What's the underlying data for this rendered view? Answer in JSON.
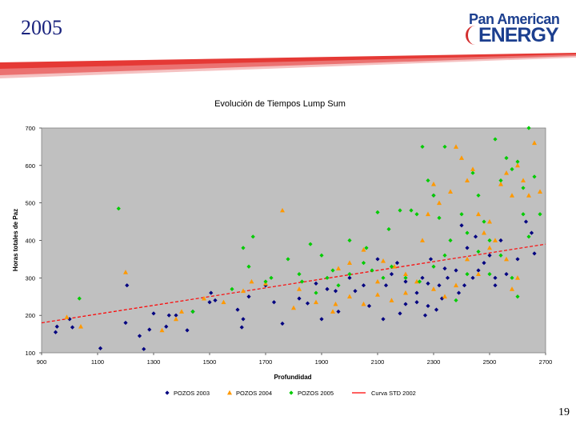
{
  "slide": {
    "title": "2005",
    "page_number": "19",
    "logo_line1": "Pan American",
    "logo_line2": "ENERGY"
  },
  "colors": {
    "banner": "#e53935",
    "plot_bg": "#c0c0c0",
    "pozos2003": "#000080",
    "pozos2004": "#ff9900",
    "pozos2005": "#00cc00",
    "curve": "#ff0000"
  },
  "chart_data": {
    "type": "scatter",
    "title": "Evolución de Tiempos Lump Sum",
    "xlabel": "Profundidad",
    "ylabel": "Horas totales de Paz",
    "xlim": [
      900,
      2700
    ],
    "ylim": [
      100,
      700
    ],
    "x_ticks": [
      "900",
      "1100",
      "1300",
      "1500",
      "1700",
      "1900",
      "2100",
      "2300",
      "2500",
      "2700"
    ],
    "y_ticks": [
      "100",
      "200",
      "300",
      "400",
      "500",
      "600",
      "700"
    ],
    "grid": false,
    "legend_position": "bottom",
    "series": [
      {
        "name": "POZOS 2003",
        "marker": "diamond",
        "points": [
          [
            950,
            155
          ],
          [
            955,
            170
          ],
          [
            1000,
            190
          ],
          [
            1010,
            168
          ],
          [
            1110,
            112
          ],
          [
            1200,
            180
          ],
          [
            1205,
            280
          ],
          [
            1250,
            145
          ],
          [
            1265,
            110
          ],
          [
            1285,
            162
          ],
          [
            1300,
            205
          ],
          [
            1345,
            170
          ],
          [
            1355,
            200
          ],
          [
            1380,
            200
          ],
          [
            1420,
            160
          ],
          [
            1440,
            210
          ],
          [
            1500,
            235
          ],
          [
            1505,
            260
          ],
          [
            1520,
            240
          ],
          [
            1600,
            215
          ],
          [
            1615,
            168
          ],
          [
            1620,
            190
          ],
          [
            1640,
            250
          ],
          [
            1700,
            280
          ],
          [
            1730,
            235
          ],
          [
            1760,
            178
          ],
          [
            1820,
            245
          ],
          [
            1850,
            232
          ],
          [
            1880,
            285
          ],
          [
            1900,
            190
          ],
          [
            1920,
            270
          ],
          [
            1950,
            265
          ],
          [
            2000,
            300
          ],
          [
            2050,
            280
          ],
          [
            2100,
            350
          ],
          [
            2150,
            310
          ],
          [
            2200,
            290
          ],
          [
            2240,
            260
          ],
          [
            2260,
            300
          ],
          [
            2280,
            225
          ],
          [
            2300,
            520
          ],
          [
            2320,
            280
          ],
          [
            2350,
            300
          ],
          [
            2380,
            320
          ],
          [
            2400,
            440
          ],
          [
            2420,
            380
          ],
          [
            2450,
            410
          ],
          [
            2460,
            320
          ],
          [
            2500,
            360
          ],
          [
            2520,
            300
          ],
          [
            2540,
            400
          ],
          [
            2560,
            310
          ],
          [
            2600,
            350
          ],
          [
            2630,
            450
          ],
          [
            2650,
            420
          ],
          [
            2660,
            365
          ],
          [
            2240,
            235
          ],
          [
            2270,
            200
          ],
          [
            2310,
            215
          ],
          [
            2330,
            245
          ],
          [
            2200,
            230
          ],
          [
            2180,
            205
          ],
          [
            2120,
            190
          ],
          [
            2070,
            225
          ],
          [
            2020,
            265
          ],
          [
            1960,
            210
          ],
          [
            2280,
            285
          ],
          [
            2340,
            325
          ],
          [
            2410,
            280
          ],
          [
            2480,
            340
          ],
          [
            2520,
            280
          ],
          [
            2440,
            300
          ],
          [
            2390,
            260
          ],
          [
            2290,
            350
          ],
          [
            2170,
            340
          ],
          [
            2130,
            280
          ]
        ]
      },
      {
        "name": "POZOS 2004",
        "marker": "triangle",
        "points": [
          [
            990,
            195
          ],
          [
            1040,
            170
          ],
          [
            1200,
            315
          ],
          [
            1330,
            160
          ],
          [
            1380,
            190
          ],
          [
            1400,
            210
          ],
          [
            1480,
            245
          ],
          [
            1550,
            235
          ],
          [
            1620,
            265
          ],
          [
            1650,
            290
          ],
          [
            1700,
            285
          ],
          [
            1760,
            480
          ],
          [
            1800,
            220
          ],
          [
            1820,
            270
          ],
          [
            1880,
            235
          ],
          [
            1940,
            210
          ],
          [
            1960,
            325
          ],
          [
            2000,
            340
          ],
          [
            2050,
            375
          ],
          [
            2100,
            290
          ],
          [
            2120,
            345
          ],
          [
            2160,
            330
          ],
          [
            2200,
            310
          ],
          [
            2240,
            290
          ],
          [
            2260,
            400
          ],
          [
            2280,
            470
          ],
          [
            2300,
            550
          ],
          [
            2320,
            500
          ],
          [
            2360,
            530
          ],
          [
            2380,
            650
          ],
          [
            2400,
            620
          ],
          [
            2420,
            560
          ],
          [
            2440,
            590
          ],
          [
            2460,
            470
          ],
          [
            2480,
            420
          ],
          [
            2500,
            380
          ],
          [
            2540,
            550
          ],
          [
            2560,
            580
          ],
          [
            2580,
            520
          ],
          [
            2600,
            600
          ],
          [
            2620,
            560
          ],
          [
            2640,
            520
          ],
          [
            2660,
            660
          ],
          [
            2680,
            530
          ],
          [
            2600,
            300
          ],
          [
            2580,
            270
          ],
          [
            2560,
            350
          ],
          [
            2520,
            400
          ],
          [
            2500,
            450
          ],
          [
            2460,
            310
          ],
          [
            2420,
            350
          ],
          [
            2380,
            280
          ],
          [
            2340,
            250
          ],
          [
            2300,
            270
          ],
          [
            2200,
            260
          ],
          [
            2150,
            240
          ],
          [
            2100,
            255
          ],
          [
            2050,
            230
          ],
          [
            2000,
            250
          ],
          [
            1950,
            230
          ]
        ]
      },
      {
        "name": "POZOS 2005",
        "marker": "diamond",
        "points": [
          [
            1035,
            245
          ],
          [
            1175,
            485
          ],
          [
            1440,
            210
          ],
          [
            1620,
            380
          ],
          [
            1640,
            330
          ],
          [
            1655,
            410
          ],
          [
            1720,
            300
          ],
          [
            1780,
            350
          ],
          [
            1830,
            290
          ],
          [
            1860,
            390
          ],
          [
            1900,
            360
          ],
          [
            1940,
            320
          ],
          [
            2000,
            400
          ],
          [
            2060,
            380
          ],
          [
            2100,
            475
          ],
          [
            2140,
            430
          ],
          [
            2180,
            480
          ],
          [
            2220,
            480
          ],
          [
            2240,
            470
          ],
          [
            2260,
            650
          ],
          [
            2280,
            560
          ],
          [
            2300,
            520
          ],
          [
            2320,
            460
          ],
          [
            2340,
            650
          ],
          [
            2360,
            400
          ],
          [
            2400,
            470
          ],
          [
            2420,
            420
          ],
          [
            2440,
            580
          ],
          [
            2460,
            520
          ],
          [
            2480,
            450
          ],
          [
            2500,
            400
          ],
          [
            2520,
            670
          ],
          [
            2540,
            560
          ],
          [
            2560,
            620
          ],
          [
            2580,
            590
          ],
          [
            2600,
            610
          ],
          [
            2620,
            540
          ],
          [
            2640,
            700
          ],
          [
            2660,
            570
          ],
          [
            2680,
            470
          ],
          [
            2640,
            410
          ],
          [
            2620,
            470
          ],
          [
            2600,
            250
          ],
          [
            2580,
            300
          ],
          [
            2540,
            360
          ],
          [
            2500,
            310
          ],
          [
            2460,
            370
          ],
          [
            2420,
            310
          ],
          [
            2380,
            240
          ],
          [
            2340,
            360
          ],
          [
            2300,
            330
          ],
          [
            2250,
            290
          ],
          [
            2200,
            300
          ],
          [
            2150,
            330
          ],
          [
            2120,
            300
          ],
          [
            2080,
            320
          ],
          [
            2050,
            340
          ],
          [
            2000,
            310
          ],
          [
            1960,
            280
          ],
          [
            1920,
            300
          ],
          [
            1880,
            260
          ],
          [
            1820,
            310
          ],
          [
            1700,
            290
          ],
          [
            1580,
            270
          ]
        ]
      },
      {
        "name": "Curva STD 2002",
        "line": true,
        "points": [
          [
            900,
            180
          ],
          [
            2700,
            390
          ]
        ]
      }
    ]
  }
}
